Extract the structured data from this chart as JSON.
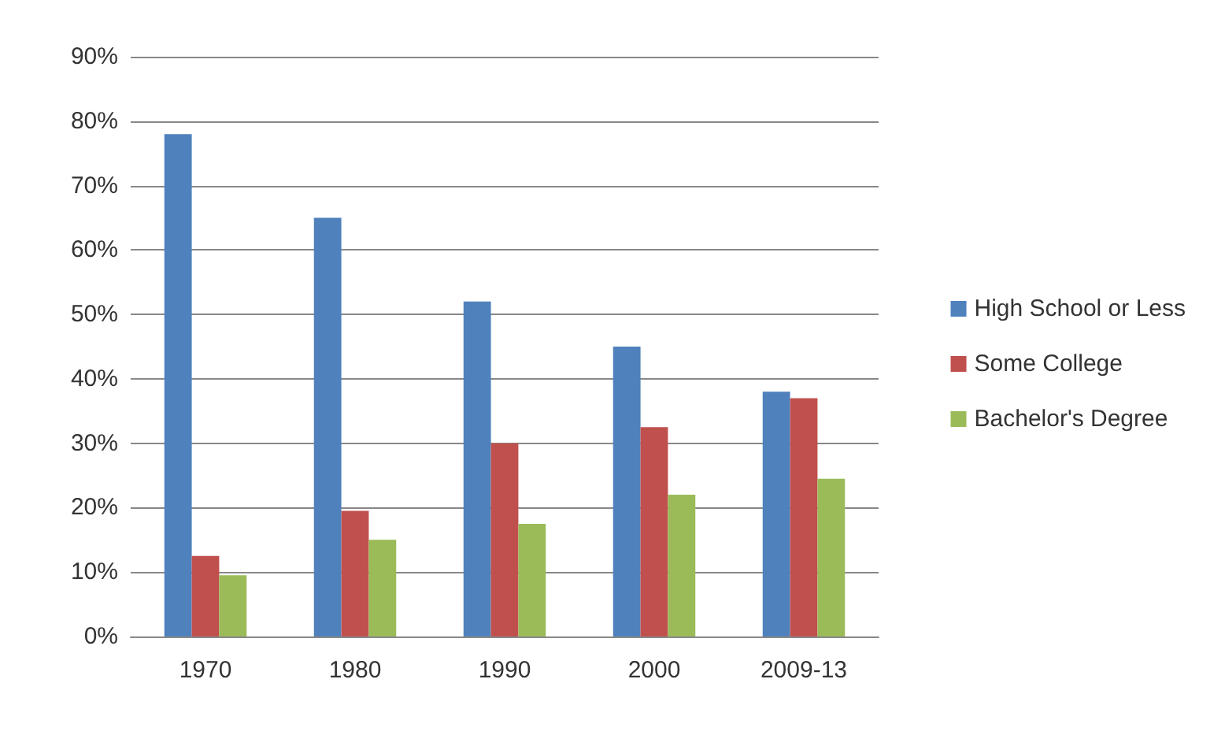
{
  "chart_data": {
    "type": "bar",
    "categories": [
      "1970",
      "1980",
      "1990",
      "2000",
      "2009-13"
    ],
    "series": [
      {
        "name": "High School or Less",
        "color": "#4f81bd",
        "values": [
          78,
          65,
          52,
          45,
          38
        ]
      },
      {
        "name": "Some College",
        "color": "#c0504d",
        "values": [
          12.5,
          19.5,
          30,
          32.5,
          37
        ]
      },
      {
        "name": "Bachelor's Degree",
        "color": "#9bbb59",
        "values": [
          9.5,
          15,
          17.5,
          22,
          24.5
        ]
      }
    ],
    "ylim": [
      0,
      90
    ],
    "yticks": [
      {
        "value": 0,
        "label": "0%"
      },
      {
        "value": 10,
        "label": "10%"
      },
      {
        "value": 20,
        "label": "20%"
      },
      {
        "value": 30,
        "label": "30%"
      },
      {
        "value": 40,
        "label": "40%"
      },
      {
        "value": 50,
        "label": "50%"
      },
      {
        "value": 60,
        "label": "60%"
      },
      {
        "value": 70,
        "label": "70%"
      },
      {
        "value": 80,
        "label": "80%"
      },
      {
        "value": 90,
        "label": "90%"
      }
    ],
    "grid": "y",
    "legend": "right"
  }
}
